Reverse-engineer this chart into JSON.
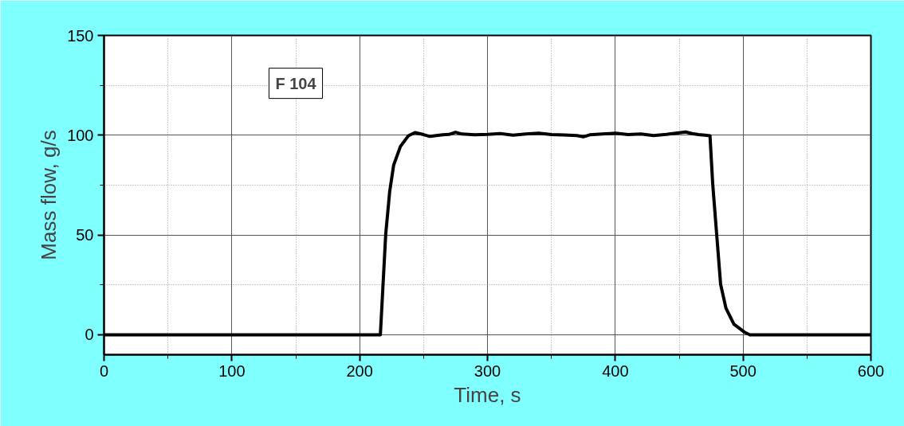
{
  "chart_data": {
    "type": "line",
    "xlabel": "Time, s",
    "ylabel": "Mass flow, g/s",
    "annotations": [
      "F 104"
    ],
    "x": [
      0,
      100,
      200,
      216.2,
      218.3,
      220.4,
      223.5,
      226.6,
      231.9,
      238.1,
      243.3,
      250,
      255,
      260,
      265,
      270,
      275,
      280,
      290,
      300,
      310,
      320,
      330,
      340,
      350,
      360,
      370,
      375,
      380,
      390,
      400,
      410,
      420,
      430,
      440,
      450,
      455,
      460,
      465,
      470,
      474.1,
      476.2,
      479.3,
      482.4,
      486.6,
      492.8,
      501.1,
      505.3,
      550,
      600
    ],
    "series": [
      {
        "color": "#000000",
        "values": [
          0,
          0,
          0,
          0,
          25.3,
          50.5,
          71.8,
          85,
          94.4,
          99.7,
          101.3,
          100.3,
          99.4,
          99.8,
          100.2,
          100.4,
          101.5,
          100.6,
          100.2,
          100.4,
          100.8,
          100,
          100.6,
          101,
          100.3,
          100.1,
          99.8,
          99.2,
          100.2,
          100.6,
          101,
          100.3,
          100.6,
          99.8,
          100.4,
          101.2,
          101.6,
          100.8,
          100.3,
          100,
          99.7,
          75.8,
          50.5,
          25.3,
          13.3,
          5.3,
          1.3,
          0,
          0,
          0
        ]
      }
    ],
    "xlim": [
      0,
      600
    ],
    "ylim": [
      -10,
      150
    ],
    "xticks": [
      0,
      {
        "value": 50,
        "label": null
      },
      100,
      {
        "value": 150,
        "label": null
      },
      200,
      {
        "value": 250,
        "label": null
      },
      300,
      {
        "value": 350,
        "label": null
      },
      400,
      {
        "value": 450,
        "label": null
      },
      500,
      {
        "value": 550,
        "label": null
      },
      600
    ],
    "yticks": [
      0,
      {
        "value": 25,
        "label": null
      },
      50,
      {
        "value": 75,
        "label": null
      },
      100,
      {
        "value": 125,
        "label": null
      },
      150
    ],
    "grid": true,
    "marker": "none",
    "line_style": "solid"
  }
}
